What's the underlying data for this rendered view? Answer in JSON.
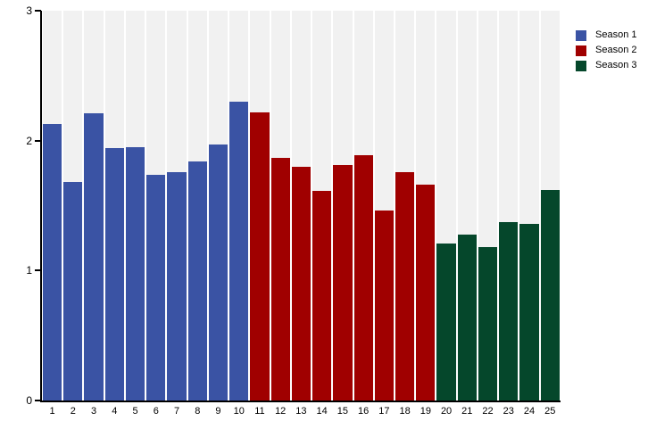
{
  "chart_data": {
    "type": "bar",
    "title": "",
    "xlabel": "",
    "ylabel": "",
    "ylim": [
      0,
      3
    ],
    "yticks": [
      0,
      1,
      2,
      3
    ],
    "grid": false,
    "legend_position": "top-right",
    "background_band_color": "#F1F1F1",
    "axis_color": "#000000",
    "categories": [
      "1",
      "2",
      "3",
      "4",
      "5",
      "6",
      "7",
      "8",
      "9",
      "10",
      "11",
      "12",
      "13",
      "14",
      "15",
      "16",
      "17",
      "18",
      "19",
      "20",
      "21",
      "22",
      "23",
      "24",
      "25"
    ],
    "series": [
      {
        "name": "Season 1",
        "color": "#3A53A4",
        "categories": [
          "1",
          "2",
          "3",
          "4",
          "5",
          "6",
          "7",
          "8",
          "9",
          "10"
        ],
        "values": [
          2.13,
          1.68,
          2.21,
          1.94,
          1.95,
          1.74,
          1.76,
          1.84,
          1.97,
          2.3
        ]
      },
      {
        "name": "Season 2",
        "color": "#A00000",
        "categories": [
          "11",
          "12",
          "13",
          "14",
          "15",
          "16",
          "17",
          "18",
          "19"
        ],
        "values": [
          2.22,
          1.87,
          1.8,
          1.61,
          1.81,
          1.89,
          1.46,
          1.76,
          1.66
        ]
      },
      {
        "name": "Season 3",
        "color": "#05472B",
        "categories": [
          "20",
          "21",
          "22",
          "23",
          "24",
          "25"
        ],
        "values": [
          1.21,
          1.28,
          1.18,
          1.37,
          1.36,
          1.62
        ]
      }
    ]
  }
}
